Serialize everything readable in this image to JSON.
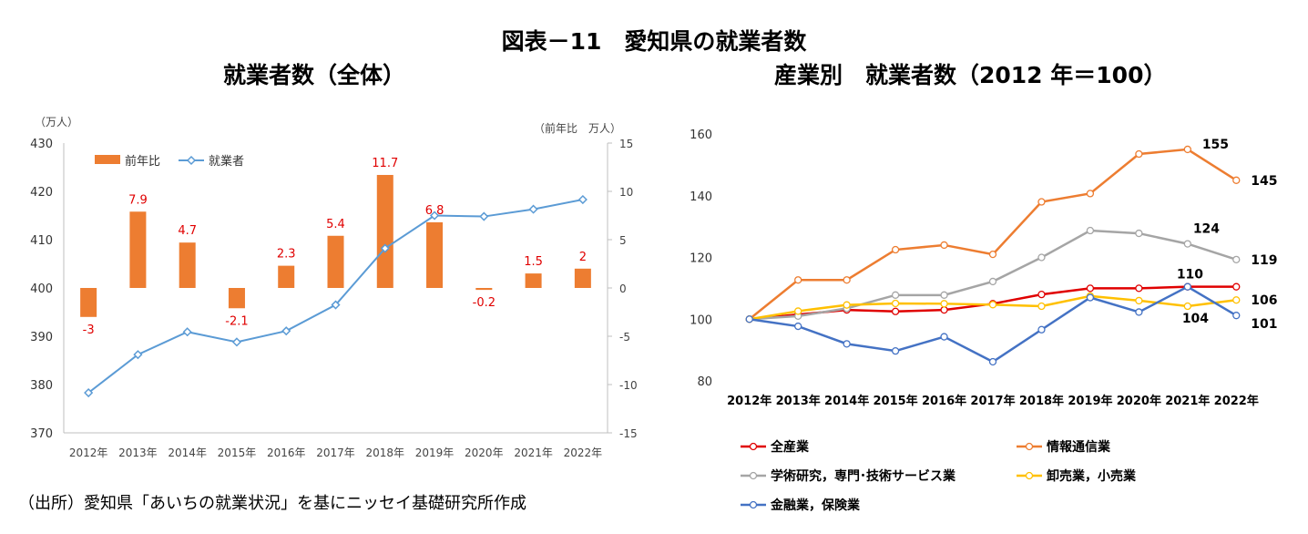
{
  "title": "図表－11　愛知県の就業者数",
  "source_note": "（出所）愛知県「あいちの就業状況」を基にニッセイ基礎研究所作成",
  "chart_data": [
    {
      "type": "bar+line",
      "title": "就業者数（全体）",
      "left_axis_unit": "（万人）",
      "right_axis_unit": "（前年比　万人）",
      "categories": [
        "2012年",
        "2013年",
        "2014年",
        "2015年",
        "2016年",
        "2017年",
        "2018年",
        "2019年",
        "2020年",
        "2021年",
        "2022年"
      ],
      "left_ylim": [
        370,
        430
      ],
      "left_ticks": [
        "430",
        "420",
        "410",
        "400",
        "390",
        "380",
        "370"
      ],
      "right_ylim": [
        -15,
        15
      ],
      "right_ticks": [
        "15",
        "10",
        "5",
        "0",
        "-5",
        "-10",
        "-15"
      ],
      "legend_position": "top-left",
      "series": [
        {
          "name": "前年比",
          "kind": "bar",
          "axis": "right",
          "color": "#ed7d31",
          "values": [
            -3,
            7.9,
            4.7,
            -2.1,
            2.3,
            5.4,
            11.7,
            6.8,
            -0.2,
            1.5,
            2
          ],
          "labels": [
            "-3",
            "7.9",
            "4.7",
            "-2.1",
            "2.3",
            "5.4",
            "11.7",
            "6.8",
            "-0.2",
            "1.5",
            "2"
          ]
        },
        {
          "name": "就業者",
          "kind": "line",
          "axis": "left",
          "color": "#5b9bd5",
          "values": [
            378.3,
            386.2,
            390.9,
            388.8,
            391.1,
            396.5,
            408.2,
            415.0,
            414.8,
            416.3,
            418.3
          ]
        }
      ]
    },
    {
      "type": "line",
      "title": "産業別　就業者数（2012 年＝100）",
      "categories": [
        "2012年",
        "2013年",
        "2014年",
        "2015年",
        "2016年",
        "2017年",
        "2018年",
        "2019年",
        "2020年",
        "2021年",
        "2022年"
      ],
      "ylim": [
        80,
        160
      ],
      "yticks": [
        "160",
        "140",
        "120",
        "100",
        "80"
      ],
      "legend_position": "bottom",
      "series": [
        {
          "name": "全産業",
          "color": "#e00000",
          "values": [
            100,
            101.5,
            103,
            102.5,
            103,
            105,
            108,
            110,
            110,
            110.5,
            110.5
          ]
        },
        {
          "name": "情報通信業",
          "color": "#ed7d31",
          "values": [
            100,
            112.7,
            112.7,
            122.5,
            124,
            121,
            138,
            140.7,
            153.5,
            155,
            145
          ]
        },
        {
          "name": "学術研究，専門･技術サービス業",
          "color": "#a5a5a5",
          "values": [
            100,
            101,
            103.5,
            107.8,
            107.8,
            112.2,
            120,
            128.7,
            127.8,
            124.4,
            119.3
          ]
        },
        {
          "name": "卸売業，小売業",
          "color": "#ffc000",
          "values": [
            100,
            102.6,
            104.6,
            105.1,
            105,
            104.7,
            104.2,
            107.5,
            106,
            104.2,
            106.2
          ]
        },
        {
          "name": "金融業，保険業",
          "color": "#4472c4",
          "values": [
            100,
            97.7,
            92,
            89.7,
            94.3,
            86.2,
            96.6,
            107,
            102.3,
            110.5,
            101.2
          ]
        }
      ],
      "end_labels": [
        {
          "text": "155",
          "series": 1,
          "index": 9
        },
        {
          "text": "145",
          "series": 1,
          "index": 10
        },
        {
          "text": "124",
          "series": 2,
          "index": 9
        },
        {
          "text": "119",
          "series": 2,
          "index": 10
        },
        {
          "text": "110",
          "series": 4,
          "index": 9
        },
        {
          "text": "106",
          "series": 3,
          "index": 10
        },
        {
          "text": "104",
          "series": 3,
          "index": 9
        },
        {
          "text": "101",
          "series": 4,
          "index": 10
        }
      ]
    }
  ]
}
